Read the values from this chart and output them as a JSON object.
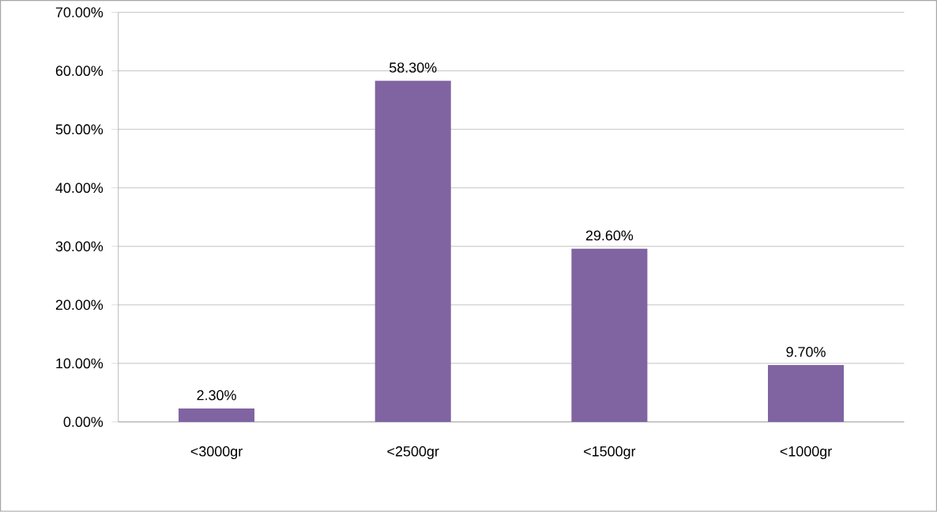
{
  "chart_data": {
    "type": "bar",
    "categories": [
      "<3000gr",
      "<2500gr",
      "<1500gr",
      "<1000gr"
    ],
    "values": [
      2.3,
      58.3,
      29.6,
      9.7
    ],
    "value_labels": [
      "2.30%",
      "58.30%",
      "29.60%",
      "9.70%"
    ],
    "color": "#8064a2",
    "ylim": [
      0,
      70
    ],
    "yticks": [
      {
        "value": 0,
        "label": "0.00%"
      },
      {
        "value": 10,
        "label": "10.00%"
      },
      {
        "value": 20,
        "label": "20.00%"
      },
      {
        "value": 30,
        "label": "30.00%"
      },
      {
        "value": 40,
        "label": "40.00%"
      },
      {
        "value": 50,
        "label": "50.00%"
      },
      {
        "value": 60,
        "label": "60.00%"
      },
      {
        "value": 70,
        "label": "70.00%"
      }
    ],
    "grid": "y"
  }
}
